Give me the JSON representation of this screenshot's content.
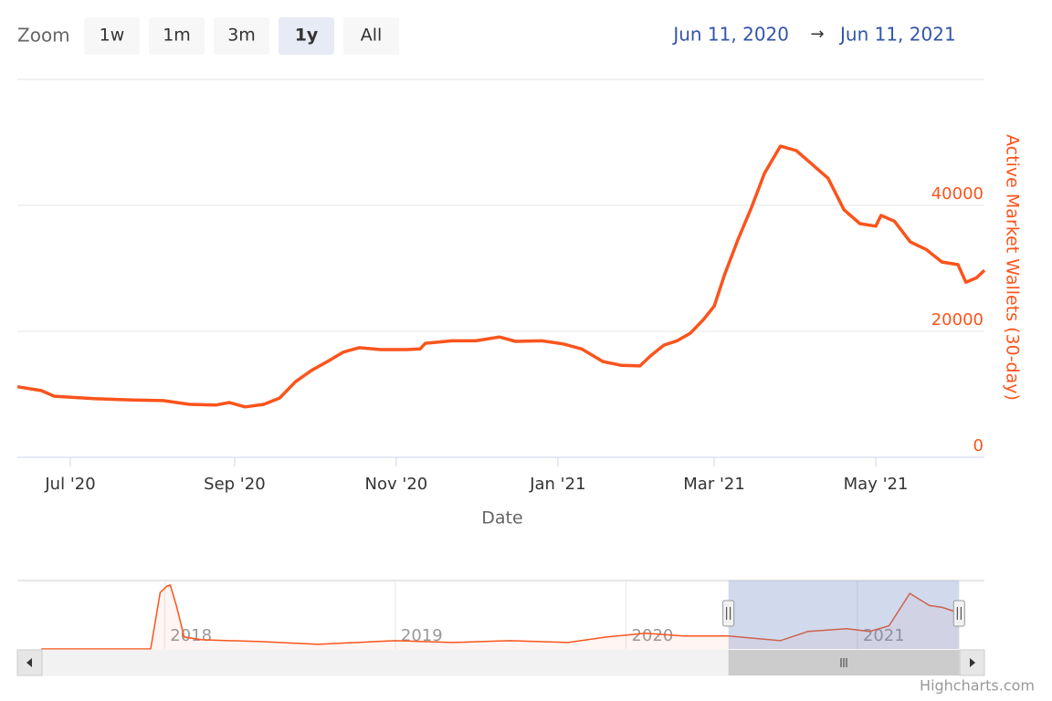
{
  "range_selector": {
    "label": "Zoom",
    "buttons": [
      "1w",
      "1m",
      "3m",
      "1y",
      "All"
    ],
    "selected": 3,
    "from": "Jun 11, 2020",
    "separator": "→",
    "to": "Jun 11, 2021"
  },
  "credits": "Highcharts.com",
  "chart_data": [
    {
      "type": "line",
      "y_label": "Active Market Wallets (30-day)",
      "x_label": "Date",
      "color": "#fa541c",
      "grid": true,
      "xlim": [
        "2020-06-11",
        "2021-06-11"
      ],
      "ylim": [
        0,
        60000
      ],
      "yticks": [
        0,
        20000,
        40000
      ],
      "xticks": [
        {
          "value": "2020-07-01",
          "label": "Jul '20"
        },
        {
          "value": "2020-09-01",
          "label": "Sep '20"
        },
        {
          "value": "2020-11-01",
          "label": "Nov '20"
        },
        {
          "value": "2021-01-01",
          "label": "Jan '21"
        },
        {
          "value": "2021-03-01",
          "label": "Mar '21"
        },
        {
          "value": "2021-05-01",
          "label": "May '21"
        }
      ],
      "x": [
        "2020-06-11",
        "2020-06-20",
        "2020-06-25",
        "2020-07-10",
        "2020-07-25",
        "2020-08-05",
        "2020-08-15",
        "2020-08-25",
        "2020-08-30",
        "2020-09-05",
        "2020-09-12",
        "2020-09-18",
        "2020-09-24",
        "2020-09-30",
        "2020-10-06",
        "2020-10-12",
        "2020-10-18",
        "2020-10-26",
        "2020-11-05",
        "2020-11-10",
        "2020-11-12",
        "2020-11-22",
        "2020-12-01",
        "2020-12-10",
        "2020-12-16",
        "2020-12-26",
        "2021-01-03",
        "2021-01-10",
        "2021-01-18",
        "2021-01-25",
        "2021-02-01",
        "2021-02-05",
        "2021-02-10",
        "2021-02-15",
        "2021-02-20",
        "2021-02-25",
        "2021-03-01",
        "2021-03-05",
        "2021-03-10",
        "2021-03-15",
        "2021-03-20",
        "2021-03-26",
        "2021-04-01",
        "2021-04-07",
        "2021-04-13",
        "2021-04-19",
        "2021-04-25",
        "2021-05-01",
        "2021-05-03",
        "2021-05-08",
        "2021-05-14",
        "2021-05-20",
        "2021-05-26",
        "2021-06-01",
        "2021-06-04",
        "2021-06-08",
        "2021-06-11"
      ],
      "values": [
        11200,
        10600,
        9700,
        9300,
        9100,
        9000,
        8400,
        8300,
        8700,
        8000,
        8400,
        9400,
        12000,
        13800,
        15200,
        16700,
        17400,
        17100,
        17100,
        17200,
        18100,
        18500,
        18500,
        19100,
        18400,
        18500,
        18000,
        17200,
        15200,
        14600,
        14500,
        16100,
        17800,
        18500,
        19700,
        21900,
        24000,
        29100,
        34600,
        39600,
        45100,
        49400,
        48700,
        46500,
        44300,
        39300,
        37100,
        36700,
        38400,
        37500,
        34200,
        33000,
        31000,
        30600,
        27800,
        28500,
        29700
      ]
    },
    {
      "type": "navigator",
      "color": "#fa541c",
      "xlim": [
        "2017-05-13",
        "2021-07-21"
      ],
      "ylim": [
        0,
        60000
      ],
      "xticks": [
        {
          "value": "2018-01-01",
          "label": "2018"
        },
        {
          "value": "2019-01-01",
          "label": "2019"
        },
        {
          "value": "2020-01-01",
          "label": "2020"
        },
        {
          "value": "2021-01-01",
          "label": "2021"
        }
      ],
      "x": [
        "2017-06-20",
        "2017-12-10",
        "2017-12-25",
        "2018-01-05",
        "2018-01-10",
        "2018-01-20",
        "2018-02-01",
        "2018-03-01",
        "2018-06-01",
        "2018-09-01",
        "2018-12-01",
        "2019-01-01",
        "2019-04-01",
        "2019-07-01",
        "2019-10-01",
        "2019-12-01",
        "2020-02-01",
        "2020-04-01",
        "2020-06-11",
        "2020-09-01",
        "2020-10-15",
        "2020-12-15",
        "2021-01-20",
        "2021-02-20",
        "2021-03-25",
        "2021-04-25",
        "2021-05-15",
        "2021-06-11"
      ],
      "values": [
        0,
        0,
        49500,
        55100,
        56000,
        37300,
        10500,
        8100,
        6500,
        4100,
        6500,
        7300,
        5700,
        7300,
        5700,
        10500,
        13800,
        11400,
        11400,
        7300,
        15400,
        17800,
        15400,
        20300,
        48700,
        38100,
        36500,
        31600
      ]
    }
  ]
}
